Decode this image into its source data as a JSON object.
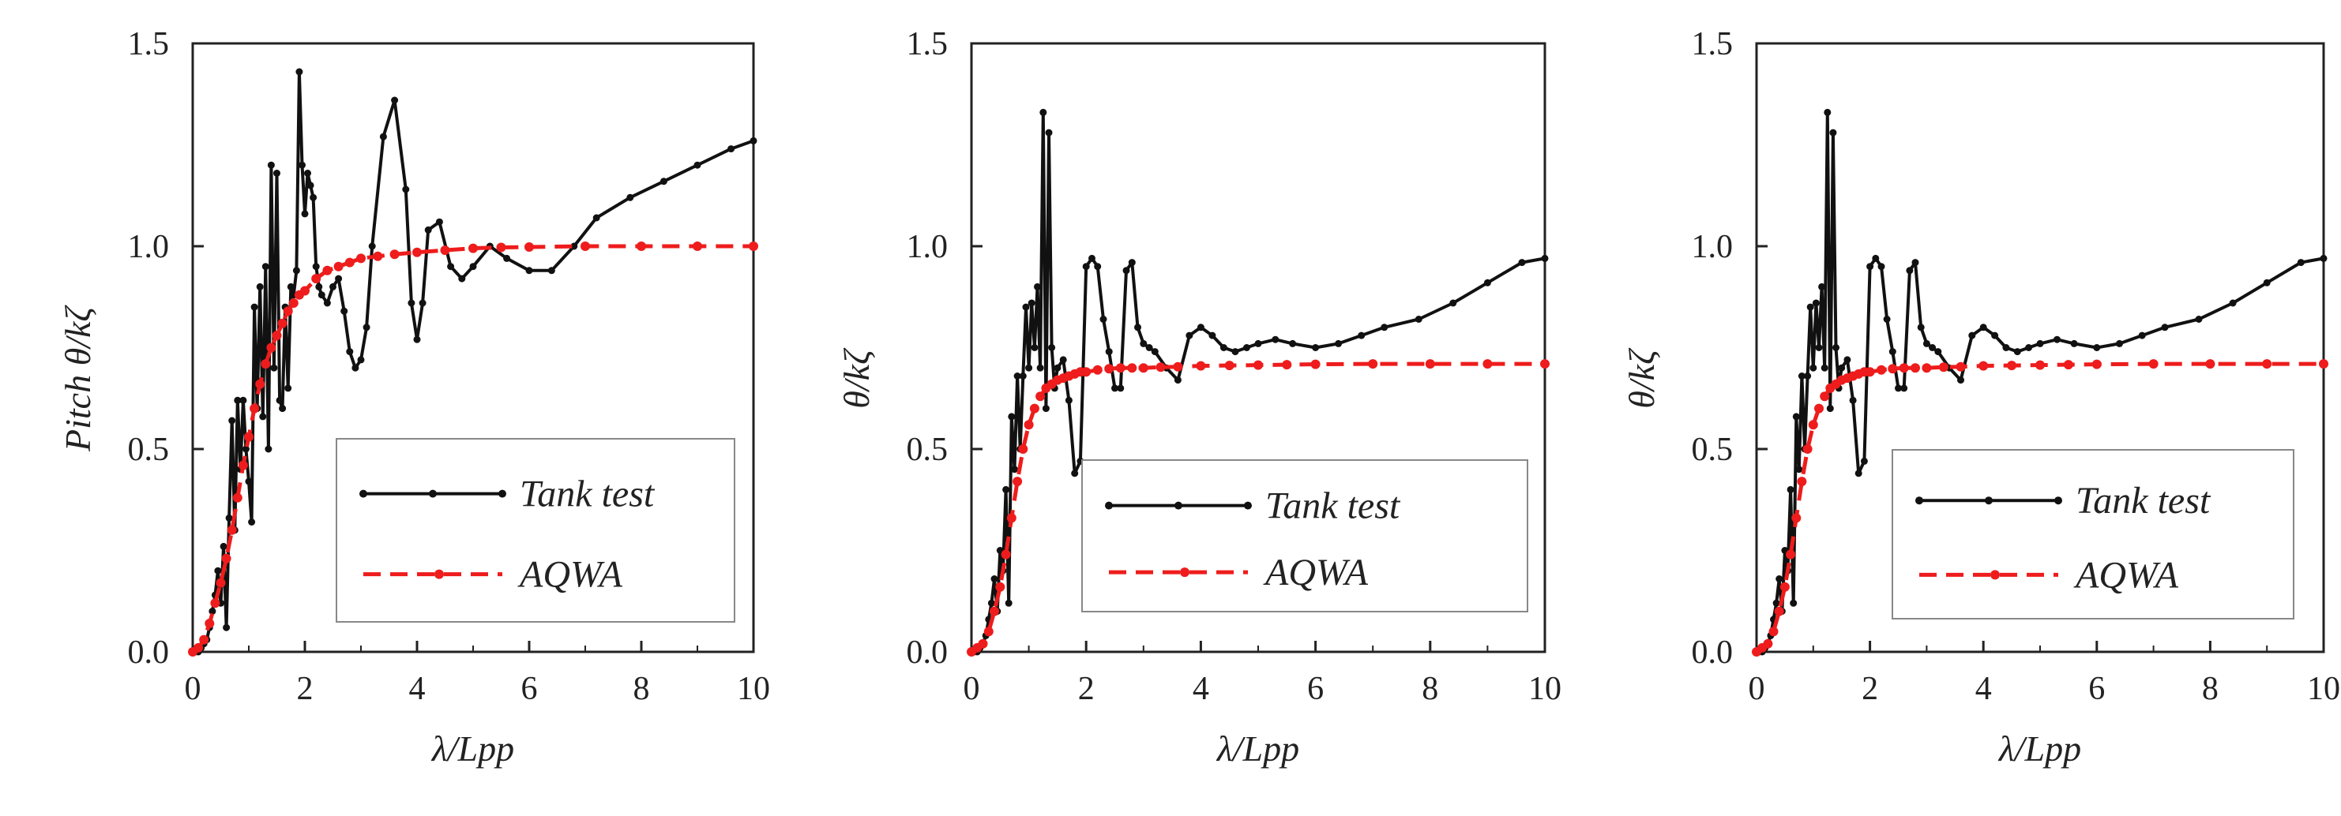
{
  "colors": {
    "tank": "#111111",
    "aqwa": "#ee1c1c",
    "frame": "#222222",
    "legend_border": "#888888"
  },
  "chart_data": [
    {
      "type": "line",
      "xlabel": "λ/Lpp",
      "ylabel": "Pitch  θ/kζ",
      "xlim": [
        0,
        10
      ],
      "ylim": [
        0,
        1.5
      ],
      "xticks": [
        "0",
        "2",
        "4",
        "6",
        "8",
        "10"
      ],
      "yticks": [
        "0.0",
        "0.5",
        "1.0",
        "1.5"
      ],
      "legend": [
        "Tank test",
        "AQWA"
      ],
      "series": [
        {
          "name": "Tank test",
          "x": [
            0.05,
            0.1,
            0.15,
            0.2,
            0.25,
            0.3,
            0.35,
            0.4,
            0.45,
            0.5,
            0.55,
            0.6,
            0.65,
            0.7,
            0.75,
            0.8,
            0.85,
            0.9,
            0.95,
            1.0,
            1.05,
            1.1,
            1.15,
            1.2,
            1.25,
            1.3,
            1.35,
            1.4,
            1.45,
            1.5,
            1.55,
            1.6,
            1.65,
            1.7,
            1.75,
            1.8,
            1.85,
            1.9,
            1.95,
            2.0,
            2.05,
            2.1,
            2.15,
            2.2,
            2.25,
            2.3,
            2.4,
            2.5,
            2.6,
            2.7,
            2.8,
            2.9,
            3.0,
            3.1,
            3.2,
            3.4,
            3.6,
            3.8,
            3.9,
            4.0,
            4.1,
            4.2,
            4.4,
            4.6,
            4.8,
            5.0,
            5.3,
            5.6,
            6.0,
            6.4,
            6.8,
            7.2,
            7.8,
            8.4,
            9.0,
            9.6,
            10.0
          ],
          "values": [
            0.0,
            0.0,
            0.01,
            0.02,
            0.03,
            0.06,
            0.1,
            0.14,
            0.2,
            0.12,
            0.26,
            0.06,
            0.33,
            0.57,
            0.3,
            0.62,
            0.45,
            0.62,
            0.5,
            0.42,
            0.32,
            0.85,
            0.6,
            0.9,
            0.58,
            0.95,
            0.5,
            1.2,
            0.7,
            1.18,
            0.62,
            0.6,
            0.85,
            0.65,
            0.9,
            0.88,
            0.94,
            1.43,
            1.2,
            1.08,
            1.18,
            1.15,
            1.12,
            0.95,
            0.9,
            0.88,
            0.86,
            0.9,
            0.92,
            0.84,
            0.74,
            0.7,
            0.72,
            0.8,
            1.0,
            1.27,
            1.36,
            1.14,
            0.86,
            0.77,
            0.86,
            1.04,
            1.06,
            0.95,
            0.92,
            0.95,
            1.0,
            0.97,
            0.94,
            0.94,
            1.0,
            1.07,
            1.12,
            1.16,
            1.2,
            1.24,
            1.26
          ]
        },
        {
          "name": "AQWA",
          "x": [
            0.0,
            0.1,
            0.2,
            0.3,
            0.4,
            0.5,
            0.6,
            0.7,
            0.8,
            0.9,
            1.0,
            1.1,
            1.2,
            1.3,
            1.4,
            1.5,
            1.6,
            1.7,
            1.8,
            1.9,
            2.0,
            2.2,
            2.4,
            2.6,
            2.8,
            3.0,
            3.3,
            3.6,
            4.0,
            4.5,
            5.0,
            5.5,
            6.0,
            7.0,
            8.0,
            9.0,
            10.0
          ],
          "values": [
            0.0,
            0.01,
            0.03,
            0.07,
            0.12,
            0.17,
            0.23,
            0.3,
            0.38,
            0.46,
            0.53,
            0.6,
            0.66,
            0.71,
            0.75,
            0.78,
            0.81,
            0.84,
            0.86,
            0.88,
            0.89,
            0.92,
            0.94,
            0.95,
            0.96,
            0.97,
            0.975,
            0.98,
            0.985,
            0.99,
            0.995,
            0.997,
            0.998,
            1.0,
            1.0,
            1.0,
            1.0
          ]
        }
      ]
    },
    {
      "type": "line",
      "xlabel": "λ/Lpp",
      "ylabel": "θ/kζ",
      "xlim": [
        0,
        10
      ],
      "ylim": [
        0,
        1.5
      ],
      "xticks": [
        "0",
        "2",
        "4",
        "6",
        "8",
        "10"
      ],
      "yticks": [
        "0.0",
        "0.5",
        "1.0",
        "1.5"
      ],
      "legend": [
        "Tank test",
        "AQWA"
      ],
      "series": [
        {
          "name": "Tank test",
          "x": [
            0.05,
            0.1,
            0.15,
            0.2,
            0.25,
            0.3,
            0.35,
            0.4,
            0.45,
            0.5,
            0.55,
            0.6,
            0.65,
            0.7,
            0.75,
            0.8,
            0.85,
            0.9,
            0.95,
            1.0,
            1.05,
            1.1,
            1.15,
            1.2,
            1.25,
            1.3,
            1.35,
            1.4,
            1.45,
            1.5,
            1.6,
            1.7,
            1.8,
            1.9,
            2.0,
            2.1,
            2.2,
            2.3,
            2.4,
            2.5,
            2.6,
            2.7,
            2.8,
            2.9,
            3.0,
            3.1,
            3.2,
            3.4,
            3.6,
            3.8,
            4.0,
            4.2,
            4.4,
            4.6,
            4.8,
            5.0,
            5.3,
            5.6,
            6.0,
            6.4,
            6.8,
            7.2,
            7.8,
            8.4,
            9.0,
            9.6,
            10.0
          ],
          "values": [
            0.0,
            0.0,
            0.01,
            0.02,
            0.04,
            0.08,
            0.12,
            0.18,
            0.1,
            0.25,
            0.2,
            0.4,
            0.12,
            0.58,
            0.45,
            0.68,
            0.5,
            0.68,
            0.85,
            0.7,
            0.86,
            0.75,
            0.9,
            0.7,
            1.33,
            0.6,
            1.28,
            0.75,
            0.65,
            0.7,
            0.72,
            0.62,
            0.44,
            0.47,
            0.95,
            0.97,
            0.95,
            0.82,
            0.74,
            0.65,
            0.65,
            0.94,
            0.96,
            0.8,
            0.76,
            0.75,
            0.74,
            0.7,
            0.67,
            0.78,
            0.8,
            0.78,
            0.75,
            0.74,
            0.75,
            0.76,
            0.77,
            0.76,
            0.75,
            0.76,
            0.78,
            0.8,
            0.82,
            0.86,
            0.91,
            0.96,
            0.97
          ]
        },
        {
          "name": "AQWA",
          "x": [
            0.0,
            0.1,
            0.2,
            0.3,
            0.4,
            0.5,
            0.6,
            0.7,
            0.8,
            0.9,
            1.0,
            1.1,
            1.2,
            1.3,
            1.4,
            1.5,
            1.6,
            1.7,
            1.8,
            1.9,
            2.0,
            2.2,
            2.4,
            2.6,
            2.8,
            3.0,
            3.3,
            3.6,
            4.0,
            4.5,
            5.0,
            5.5,
            6.0,
            7.0,
            8.0,
            9.0,
            10.0
          ],
          "values": [
            0.0,
            0.01,
            0.02,
            0.05,
            0.1,
            0.16,
            0.24,
            0.33,
            0.42,
            0.5,
            0.56,
            0.6,
            0.63,
            0.65,
            0.66,
            0.67,
            0.675,
            0.68,
            0.685,
            0.69,
            0.69,
            0.695,
            0.698,
            0.7,
            0.7,
            0.7,
            0.702,
            0.703,
            0.705,
            0.706,
            0.707,
            0.708,
            0.709,
            0.71,
            0.71,
            0.71,
            0.71
          ]
        }
      ]
    },
    {
      "type": "line",
      "xlabel": "λ/Lpp",
      "ylabel": "θ/kζ",
      "xlim": [
        0,
        10
      ],
      "ylim": [
        0,
        1.5
      ],
      "xticks": [
        "0",
        "2",
        "4",
        "6",
        "8",
        "10"
      ],
      "yticks": [
        "0.0",
        "0.5",
        "1.0",
        "1.5"
      ],
      "legend": [
        "Tank test",
        "AQWA"
      ],
      "series": [
        {
          "name": "Tank test",
          "x": [
            0.05,
            0.1,
            0.15,
            0.2,
            0.25,
            0.3,
            0.35,
            0.4,
            0.45,
            0.5,
            0.55,
            0.6,
            0.65,
            0.7,
            0.75,
            0.8,
            0.85,
            0.9,
            0.95,
            1.0,
            1.05,
            1.1,
            1.15,
            1.2,
            1.25,
            1.3,
            1.35,
            1.4,
            1.45,
            1.5,
            1.6,
            1.7,
            1.8,
            1.9,
            2.0,
            2.1,
            2.2,
            2.3,
            2.4,
            2.5,
            2.6,
            2.7,
            2.8,
            2.9,
            3.0,
            3.1,
            3.2,
            3.4,
            3.6,
            3.8,
            4.0,
            4.2,
            4.4,
            4.6,
            4.8,
            5.0,
            5.3,
            5.6,
            6.0,
            6.4,
            6.8,
            7.2,
            7.8,
            8.4,
            9.0,
            9.6,
            10.0
          ],
          "values": [
            0.0,
            0.0,
            0.01,
            0.02,
            0.04,
            0.08,
            0.12,
            0.18,
            0.1,
            0.25,
            0.2,
            0.4,
            0.12,
            0.58,
            0.45,
            0.68,
            0.5,
            0.68,
            0.85,
            0.7,
            0.86,
            0.75,
            0.9,
            0.7,
            1.33,
            0.6,
            1.28,
            0.75,
            0.65,
            0.7,
            0.72,
            0.62,
            0.44,
            0.47,
            0.95,
            0.97,
            0.95,
            0.82,
            0.74,
            0.65,
            0.65,
            0.94,
            0.96,
            0.8,
            0.76,
            0.75,
            0.74,
            0.7,
            0.67,
            0.78,
            0.8,
            0.78,
            0.75,
            0.74,
            0.75,
            0.76,
            0.77,
            0.76,
            0.75,
            0.76,
            0.78,
            0.8,
            0.82,
            0.86,
            0.91,
            0.96,
            0.97
          ]
        },
        {
          "name": "AQWA",
          "x": [
            0.0,
            0.1,
            0.2,
            0.3,
            0.4,
            0.5,
            0.6,
            0.7,
            0.8,
            0.9,
            1.0,
            1.1,
            1.2,
            1.3,
            1.4,
            1.5,
            1.6,
            1.7,
            1.8,
            1.9,
            2.0,
            2.2,
            2.4,
            2.6,
            2.8,
            3.0,
            3.3,
            3.6,
            4.0,
            4.5,
            5.0,
            5.5,
            6.0,
            7.0,
            8.0,
            9.0,
            10.0
          ],
          "values": [
            0.0,
            0.01,
            0.02,
            0.05,
            0.1,
            0.16,
            0.24,
            0.33,
            0.42,
            0.5,
            0.56,
            0.6,
            0.63,
            0.65,
            0.66,
            0.67,
            0.675,
            0.68,
            0.685,
            0.69,
            0.69,
            0.695,
            0.698,
            0.7,
            0.7,
            0.7,
            0.702,
            0.703,
            0.705,
            0.706,
            0.707,
            0.708,
            0.709,
            0.71,
            0.71,
            0.71,
            0.71
          ]
        }
      ]
    }
  ]
}
